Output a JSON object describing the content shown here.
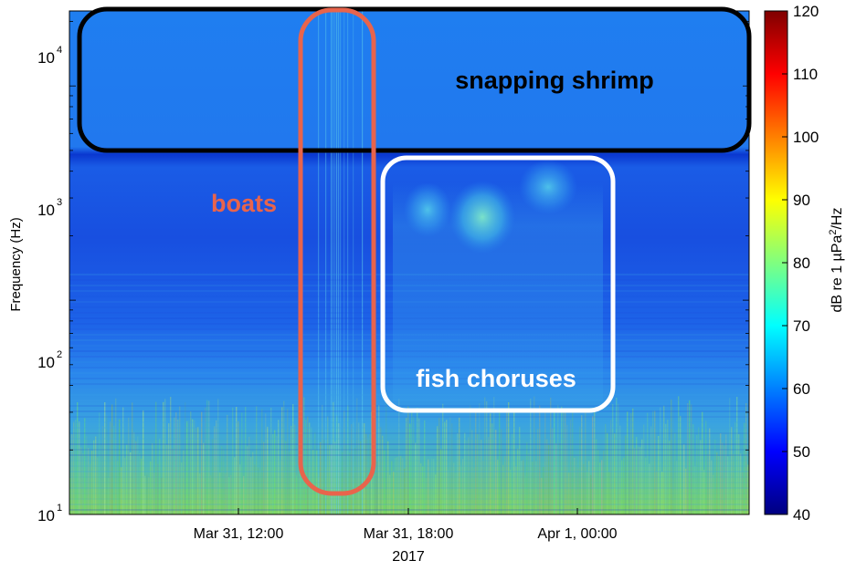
{
  "chart_data": {
    "type": "heatmap",
    "title": "",
    "xlabel": "2017",
    "ylabel": "Frequency (Hz)",
    "y_scale": "log",
    "ylim": [
      10,
      22000
    ],
    "x_ticks": [
      "Mar 31, 12:00",
      "Mar 31, 18:00",
      "Apr 1, 00:00"
    ],
    "y_ticks": [
      {
        "value": 10,
        "base": "10",
        "exp": "1"
      },
      {
        "value": 100,
        "base": "10",
        "exp": "2"
      },
      {
        "value": 1000,
        "base": "10",
        "exp": "3"
      },
      {
        "value": 10000,
        "base": "10",
        "exp": "4"
      }
    ],
    "colorbar": {
      "label_prefix": "dB re 1 µPa",
      "label_sup": "2",
      "label_suffix": "/Hz",
      "range": [
        40,
        120
      ],
      "ticks": [
        "40",
        "50",
        "60",
        "70",
        "80",
        "90",
        "100",
        "110",
        "120"
      ],
      "colormap": "jet"
    },
    "annotations": [
      {
        "text": "snapping shrimp",
        "color": "#000000",
        "band_hz": [
          2300,
          22000
        ]
      },
      {
        "text": "boats",
        "color": "#e8644c"
      },
      {
        "text": "fish choruses",
        "color": "#ffffff",
        "band_hz": [
          120,
          1700
        ]
      }
    ]
  }
}
